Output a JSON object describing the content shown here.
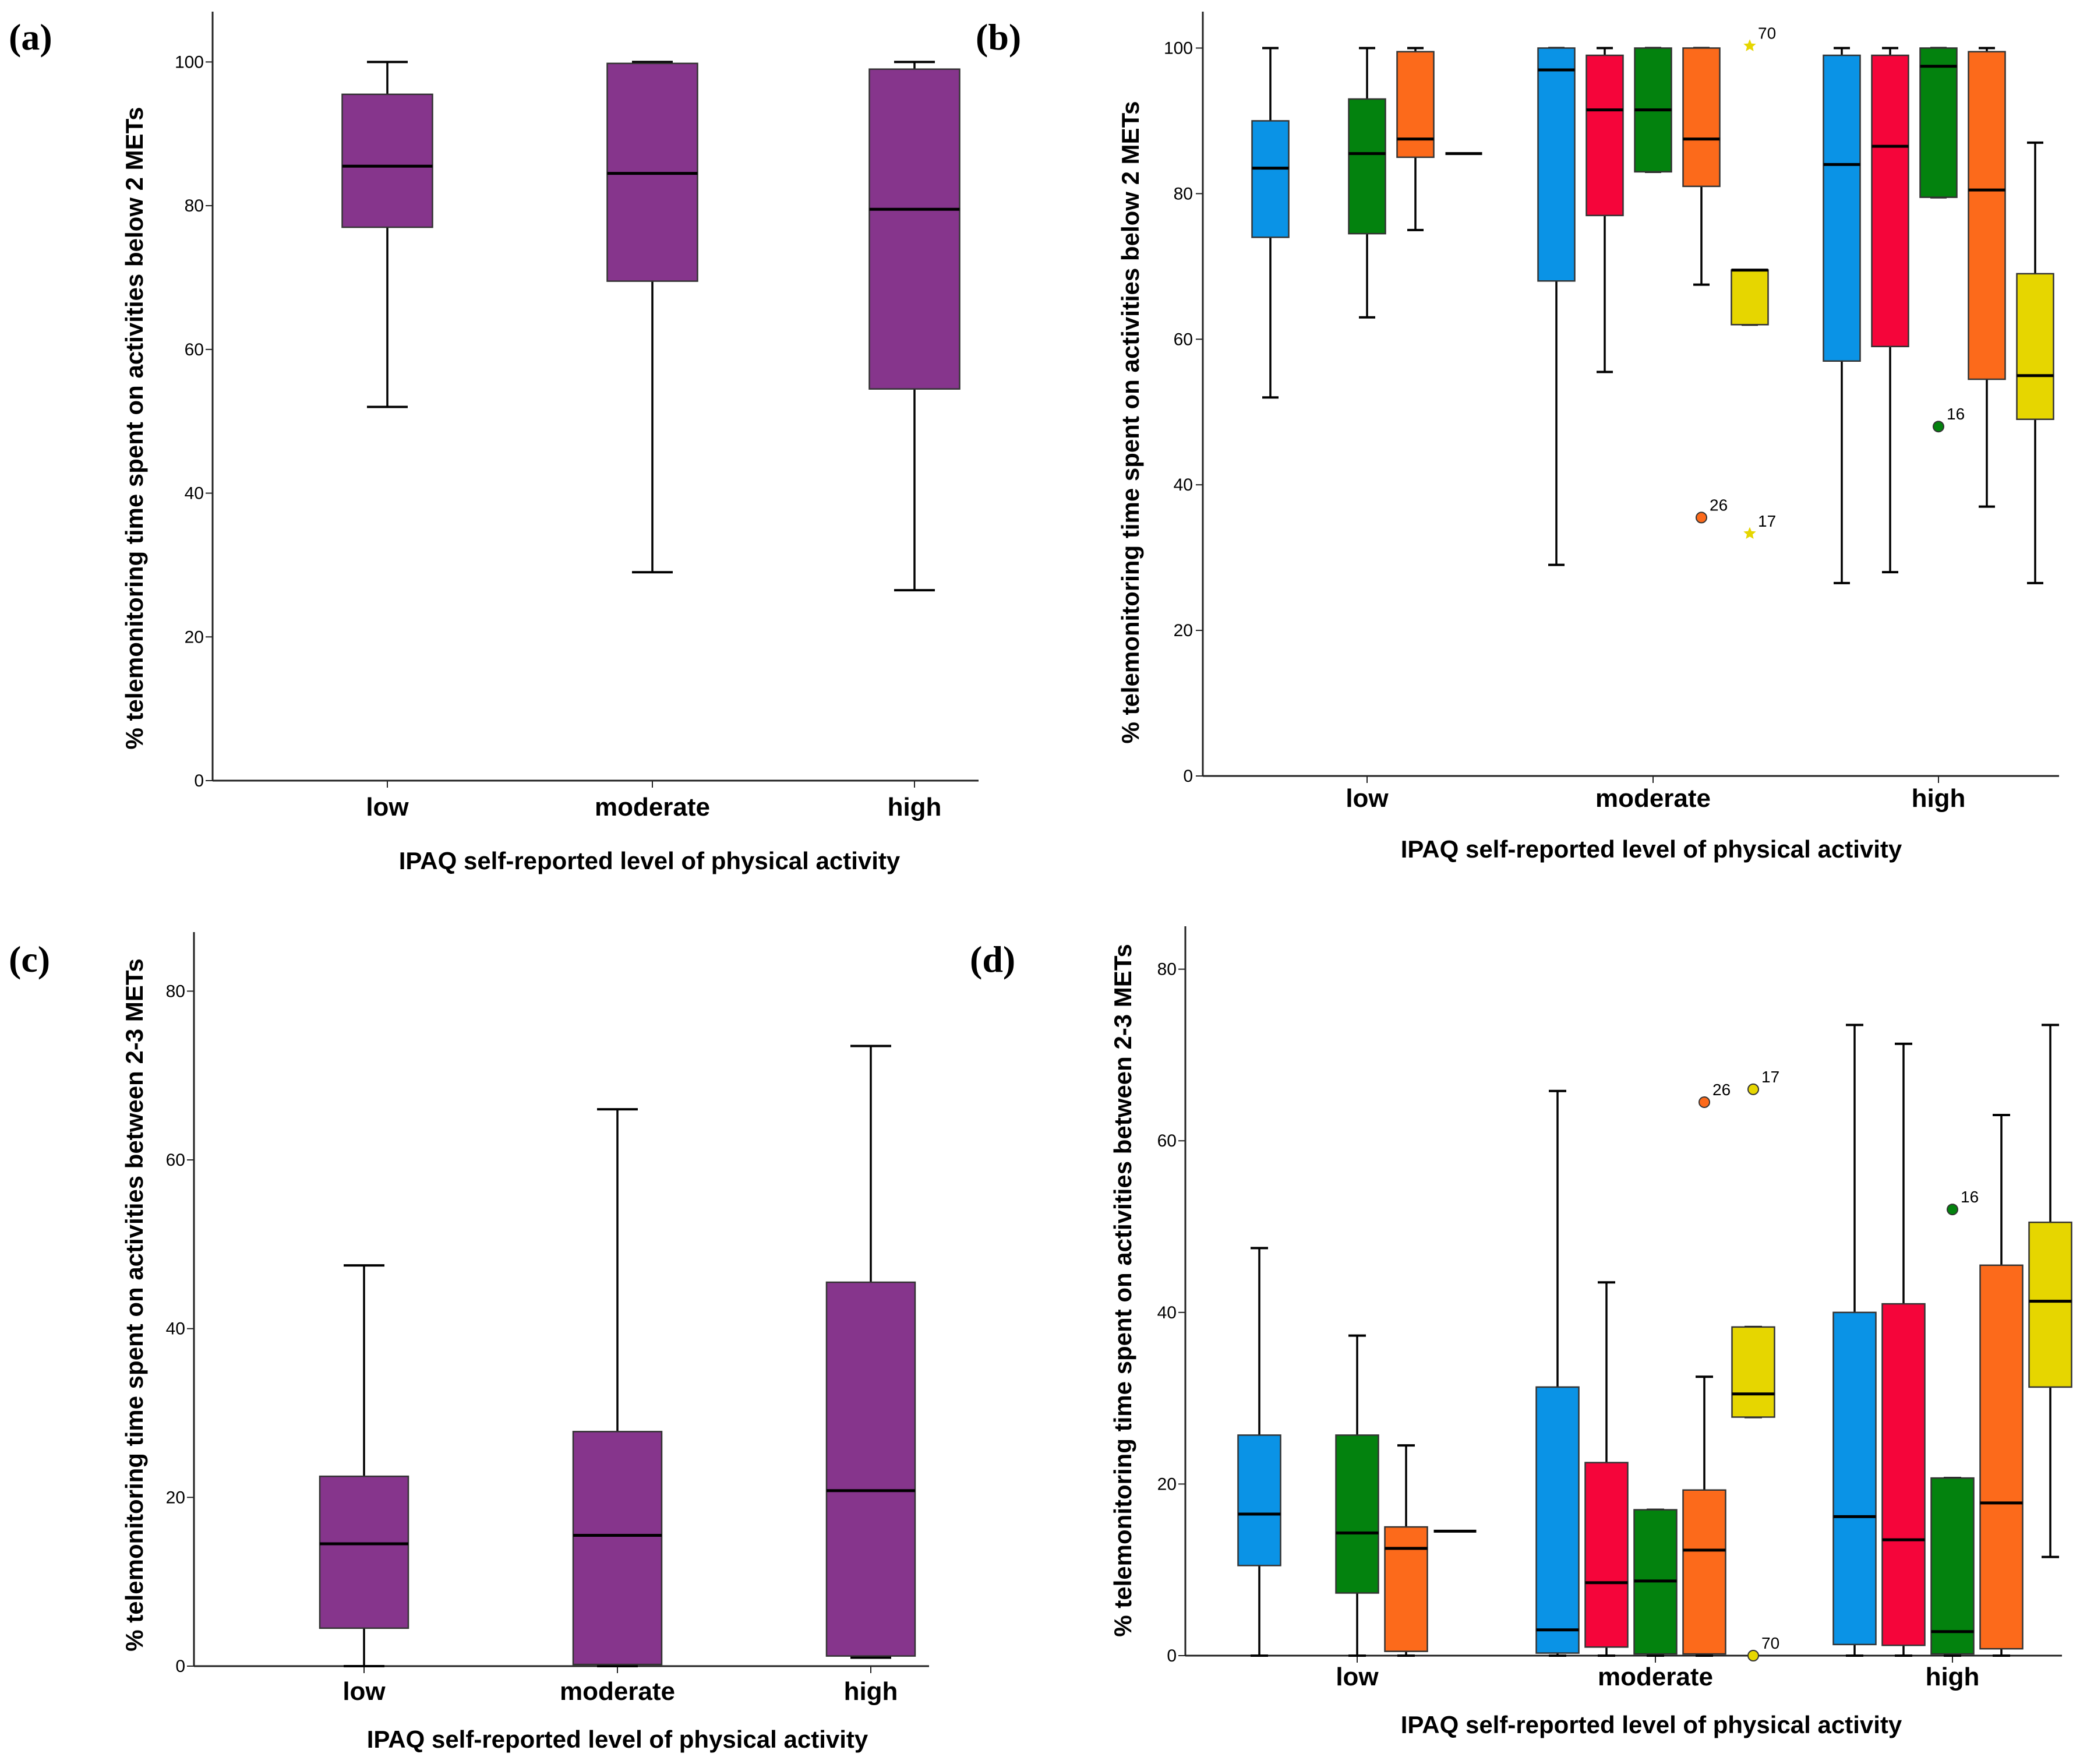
{
  "colors": {
    "purple": "#86358c",
    "blue": "#0a93e6",
    "red": "#f5053a",
    "green": "#03820e",
    "orange": "#fc6a1b",
    "yellow": "#e6d600"
  },
  "chart_data": [
    {
      "panel": "(a)",
      "type": "boxplot",
      "ylabel": "% telemonitoring time spent on activities below 2 METs",
      "xlabel": "IPAQ self-reported level of physical activity",
      "ylim": [
        0,
        107
      ],
      "yticks": [
        0,
        20,
        40,
        60,
        80,
        100
      ],
      "categories": [
        "low",
        "moderate",
        "high"
      ],
      "series": [
        {
          "color": "purple",
          "boxes": [
            {
              "min": 52,
              "q1": 77,
              "median": 85.5,
              "q3": 95.5,
              "max": 100
            },
            {
              "min": 29,
              "q1": 69.5,
              "median": 84.5,
              "q3": 99.8,
              "max": 100
            },
            {
              "min": 26.5,
              "q1": 54.5,
              "median": 79.5,
              "q3": 99,
              "max": 100
            }
          ]
        }
      ]
    },
    {
      "panel": "(b)",
      "type": "boxplot",
      "ylabel": "% telemonitoring time spent on activities below 2 METs",
      "xlabel": "IPAQ self-reported level of physical activity",
      "ylim": [
        0,
        105
      ],
      "yticks": [
        0,
        20,
        40,
        60,
        80,
        100
      ],
      "categories": [
        "low",
        "moderate",
        "high"
      ],
      "series": [
        {
          "color": "blue",
          "boxes": [
            {
              "min": 52,
              "q1": 74,
              "median": 83.5,
              "q3": 90,
              "max": 100
            },
            {
              "min": 29,
              "q1": 68,
              "median": 97,
              "q3": 100,
              "max": 100
            },
            {
              "min": 26.5,
              "q1": 57,
              "median": 84,
              "q3": 99,
              "max": 100
            }
          ]
        },
        {
          "color": "red",
          "boxes": [
            null,
            {
              "min": 55.5,
              "q1": 77,
              "median": 91.5,
              "q3": 99,
              "max": 100
            },
            {
              "min": 28,
              "q1": 59,
              "median": 86.5,
              "q3": 99,
              "max": 100
            }
          ]
        },
        {
          "color": "green",
          "boxes": [
            {
              "min": 63,
              "q1": 74.5,
              "median": 85.5,
              "q3": 93,
              "max": 100
            },
            {
              "min": 83,
              "q1": 83,
              "median": 91.5,
              "q3": 100,
              "max": 100
            },
            {
              "min": 79.5,
              "q1": 79.5,
              "median": 97.5,
              "q3": 100,
              "max": 100,
              "outliers": [
                {
                  "value": 48,
                  "label": "16",
                  "shape": "circle"
                }
              ]
            }
          ]
        },
        {
          "color": "orange",
          "boxes": [
            {
              "min": 75,
              "q1": 85,
              "median": 87.5,
              "q3": 99.5,
              "max": 100
            },
            {
              "min": 67.5,
              "q1": 81,
              "median": 87.5,
              "q3": 100,
              "max": 100,
              "outliers": [
                {
                  "value": 35.5,
                  "label": "26",
                  "shape": "circle"
                }
              ]
            },
            {
              "min": 37,
              "q1": 54.5,
              "median": 80.5,
              "q3": 99.5,
              "max": 100
            }
          ]
        },
        {
          "color": "yellow",
          "boxes": [
            {
              "single": 85.5
            },
            {
              "min": 62,
              "q1": 62,
              "median": 69.5,
              "q3": 69.5,
              "max": 69.5,
              "outliers": [
                {
                  "value": 100.3,
                  "label": "70",
                  "shape": "star"
                },
                {
                  "value": 33.3,
                  "label": "17",
                  "shape": "star"
                }
              ]
            },
            {
              "min": 26.5,
              "q1": 49,
              "median": 55,
              "q3": 69,
              "max": 87
            }
          ]
        }
      ]
    },
    {
      "panel": "(c)",
      "type": "boxplot",
      "ylabel": "% telemonitoring time spent on activities between 2-3 METs",
      "xlabel": "IPAQ self-reported level of physical activity",
      "ylim": [
        0,
        87
      ],
      "yticks": [
        0,
        20,
        40,
        60,
        80
      ],
      "categories": [
        "low",
        "moderate",
        "high"
      ],
      "series": [
        {
          "color": "purple",
          "boxes": [
            {
              "min": 0,
              "q1": 4.5,
              "median": 14.5,
              "q3": 22.5,
              "max": 47.5
            },
            {
              "min": 0,
              "q1": 0.2,
              "median": 15.5,
              "q3": 27.8,
              "max": 66
            },
            {
              "min": 1,
              "q1": 1.2,
              "median": 20.8,
              "q3": 45.5,
              "max": 73.5
            }
          ]
        }
      ]
    },
    {
      "panel": "(d)",
      "type": "boxplot",
      "ylabel": "% telemonitoring time spent on activities between 2-3 METs",
      "xlabel": "IPAQ self-reported level of physical activity",
      "ylim": [
        0,
        85
      ],
      "yticks": [
        0,
        20,
        40,
        60,
        80
      ],
      "categories": [
        "low",
        "moderate",
        "high"
      ],
      "series": [
        {
          "color": "blue",
          "boxes": [
            {
              "min": 0,
              "q1": 10.5,
              "median": 16.5,
              "q3": 25.7,
              "max": 47.5
            },
            {
              "min": 0,
              "q1": 0.3,
              "median": 3,
              "q3": 31.3,
              "max": 65.8
            },
            {
              "min": 0,
              "q1": 1.3,
              "median": 16.2,
              "q3": 40,
              "max": 73.5
            }
          ]
        },
        {
          "color": "red",
          "boxes": [
            null,
            {
              "min": 0,
              "q1": 1,
              "median": 8.5,
              "q3": 22.5,
              "max": 43.5
            },
            {
              "min": 0,
              "q1": 1.2,
              "median": 13.5,
              "q3": 41,
              "max": 71.3
            }
          ]
        },
        {
          "color": "green",
          "boxes": [
            {
              "min": 0,
              "q1": 7.3,
              "median": 14.3,
              "q3": 25.7,
              "max": 37.3
            },
            {
              "min": 0,
              "q1": 0.2,
              "median": 8.7,
              "q3": 17,
              "max": 17
            },
            {
              "min": 0,
              "q1": 0.2,
              "median": 2.8,
              "q3": 20.7,
              "max": 20.7,
              "outliers": [
                {
                  "value": 52,
                  "label": "16",
                  "shape": "circle"
                }
              ]
            }
          ]
        },
        {
          "color": "orange",
          "boxes": [
            {
              "min": 0,
              "q1": 0.5,
              "median": 12.5,
              "q3": 15,
              "max": 24.5
            },
            {
              "min": 0,
              "q1": 0.2,
              "median": 12.3,
              "q3": 19.3,
              "max": 32.5,
              "outliers": [
                {
                  "value": 64.5,
                  "label": "26",
                  "shape": "circle"
                }
              ]
            },
            {
              "min": 0,
              "q1": 0.8,
              "median": 17.8,
              "q3": 45.5,
              "max": 63
            }
          ]
        },
        {
          "color": "yellow",
          "boxes": [
            {
              "single": 14.5
            },
            {
              "min": 27.8,
              "q1": 27.8,
              "median": 30.5,
              "q3": 38.3,
              "max": 38.3,
              "outliers": [
                {
                  "value": 66,
                  "label": "17",
                  "shape": "circle"
                },
                {
                  "value": 0,
                  "label": "70",
                  "shape": "circle"
                }
              ]
            },
            {
              "min": 11.5,
              "q1": 31.3,
              "median": 41.3,
              "q3": 50.5,
              "max": 73.5
            }
          ]
        }
      ]
    }
  ]
}
